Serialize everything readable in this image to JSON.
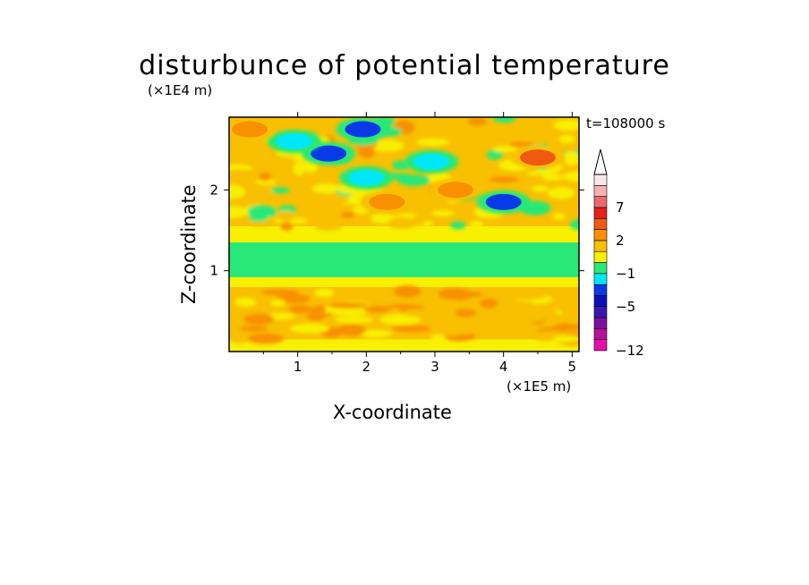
{
  "chart_data": {
    "type": "heatmap",
    "title": "disturbunce of potential temperature",
    "xlabel": "X-coordinate",
    "ylabel": "Z-coordinate",
    "x_unit": "(×1E5 m)",
    "y_unit": "(×1E4 m)",
    "time_label": "t=108000 s",
    "xlim": [
      0,
      5.1
    ],
    "ylim": [
      0,
      2.9
    ],
    "x_ticks": [
      1,
      2,
      3,
      4,
      5
    ],
    "x_tick_labels": [
      "1",
      "2",
      "3",
      "4",
      "5"
    ],
    "y_ticks": [
      1,
      2
    ],
    "y_tick_labels": [
      "1",
      "2"
    ],
    "colorbar": {
      "levels": [
        -12,
        -11,
        -9,
        -7,
        -5,
        -4,
        -3,
        -1,
        0,
        1,
        2,
        3,
        5,
        7,
        9,
        11
      ],
      "tick_values": [
        -12,
        -5,
        -1,
        2,
        7
      ],
      "tick_labels": [
        "-12",
        "-5",
        "-1",
        "2",
        "7"
      ],
      "colors": [
        "#e010a8",
        "#b8109a",
        "#7a10a0",
        "#3a18b0",
        "#0c10b8",
        "#0a3ae8",
        "#00e8f8",
        "#28e878",
        "#f8f000",
        "#f8c000",
        "#f89000",
        "#f05a10",
        "#e82018",
        "#e86a70",
        "#f8b0b0",
        "#f8e8e8"
      ],
      "extend": "max"
    },
    "bands": [
      {
        "z_range": [
          0.0,
          0.15
        ],
        "value": 0.5
      },
      {
        "z_range": [
          0.15,
          0.8
        ],
        "value": 1.5
      },
      {
        "z_range": [
          0.8,
          0.92
        ],
        "value": 0.5
      },
      {
        "z_range": [
          0.92,
          1.35
        ],
        "value": -1
      },
      {
        "z_range": [
          1.35,
          1.55
        ],
        "value": 0.5
      },
      {
        "z_range": [
          1.55,
          2.9
        ],
        "value": 1
      }
    ],
    "anomalies": [
      {
        "x": 1.45,
        "z": 2.45,
        "value": -4
      },
      {
        "x": 0.95,
        "z": 2.6,
        "value": -3
      },
      {
        "x": 1.95,
        "z": 2.75,
        "value": -4
      },
      {
        "x": 2.0,
        "z": 2.15,
        "value": -3
      },
      {
        "x": 2.95,
        "z": 2.35,
        "value": -3
      },
      {
        "x": 4.0,
        "z": 1.85,
        "value": -4
      },
      {
        "x": 4.5,
        "z": 2.4,
        "value": 4
      },
      {
        "x": 2.3,
        "z": 1.85,
        "value": 2.5
      },
      {
        "x": 3.3,
        "z": 2.0,
        "value": 2
      },
      {
        "x": 0.3,
        "z": 2.75,
        "value": 2
      }
    ]
  }
}
